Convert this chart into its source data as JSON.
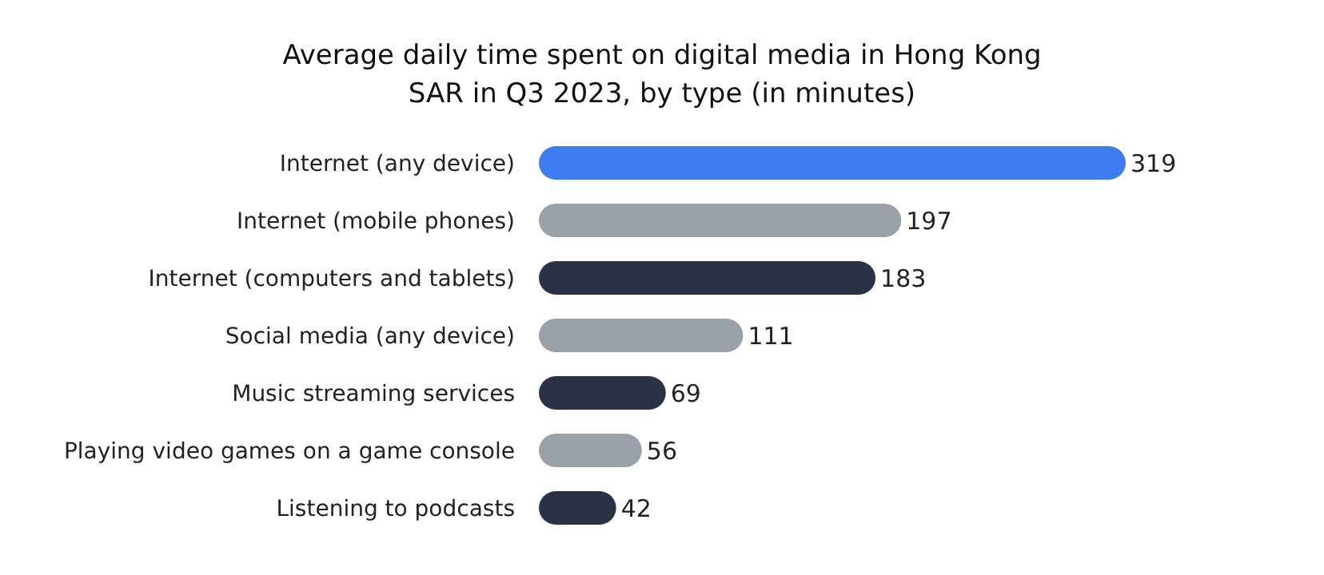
{
  "chart_data": {
    "type": "bar",
    "orientation": "horizontal",
    "title": "Average daily time spent on digital media in Hong Kong SAR in Q3 2023, by type (in minutes)",
    "categories": [
      "Internet (any device)",
      "Internet (mobile phones)",
      "Internet (computers and tablets)",
      "Social media (any device)",
      "Music streaming services",
      "Playing video games on a game console",
      "Listening to podcasts"
    ],
    "values": [
      319,
      197,
      183,
      111,
      69,
      56,
      42
    ],
    "colors": [
      "#3d7cf0",
      "#9aa0a8",
      "#2b3245",
      "#9aa0a8",
      "#2b3245",
      "#9aa0a8",
      "#2b3245"
    ],
    "data_labels": true
  }
}
